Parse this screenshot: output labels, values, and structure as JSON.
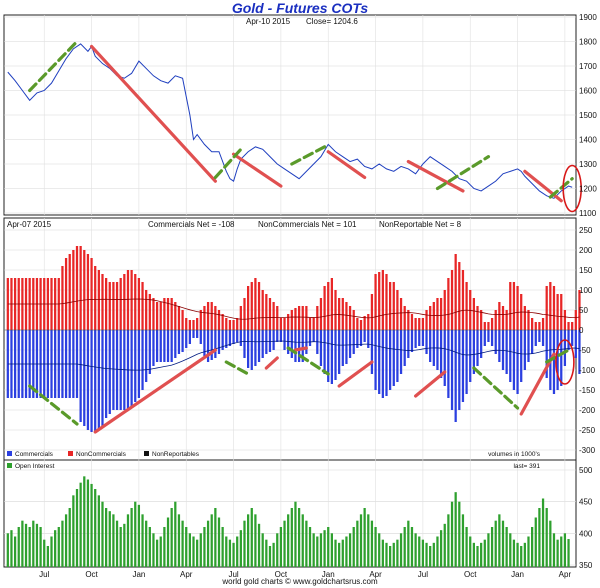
{
  "title": "Gold - Futures COTs",
  "price_header": {
    "date": "Apr-10 2015",
    "close": "Close= 1204.6"
  },
  "cot_header": {
    "date": "Apr-07 2015",
    "commercials": "Commercials Net = -108",
    "noncommercials": "NonCommercials Net = 101",
    "nonreportable": "NonReportable Net = 8"
  },
  "legend": {
    "commercials": "Commercials",
    "noncommercials": "NonCommercials",
    "nonreportables": "NonReportables",
    "units": "volumes in 1000's"
  },
  "oi_header": {
    "label": "Open Interest",
    "last": "last= 391"
  },
  "footer": "world gold charts © www.goldchartsrus.com",
  "colors": {
    "price_line": "#1f3fbf",
    "commercials": "#2b3fe0",
    "noncommercials": "#e82626",
    "open_interest": "#2ea02e",
    "trend_red": "#e05050",
    "trend_green": "#5a9a2a",
    "title": "#1a2fc0"
  },
  "chart_data": [
    {
      "type": "line",
      "title": "Gold - Futures COTs",
      "ylim": [
        1100,
        1900
      ],
      "yticks": [
        1100,
        1200,
        1300,
        1400,
        1500,
        1600,
        1700,
        1800,
        1900
      ],
      "x_tick_labels": [
        "Jul",
        "Oct",
        "Jan",
        "Apr",
        "Jul",
        "Oct",
        "Jan",
        "Apr",
        "Jul",
        "Oct",
        "Jan",
        "Apr"
      ],
      "x_tick_weeks": [
        10,
        23,
        36,
        49,
        62,
        75,
        88,
        101,
        114,
        127,
        140,
        153
      ],
      "series": [
        {
          "x_weeks": [
            0,
            2,
            4,
            6,
            8,
            10,
            12,
            14,
            16,
            18,
            20,
            22,
            23,
            24,
            26,
            28,
            30,
            32,
            34,
            36,
            38,
            40,
            42,
            44,
            46,
            48,
            50,
            51,
            52,
            54,
            56,
            58,
            60,
            61,
            62,
            63,
            64,
            66,
            68,
            70,
            72,
            74,
            76,
            78,
            80,
            82,
            84,
            86,
            88,
            90,
            92,
            94,
            96,
            98,
            100,
            102,
            104,
            106,
            108,
            110,
            112,
            114,
            116,
            118,
            120,
            122,
            124,
            126,
            128,
            130,
            132,
            134,
            136,
            138,
            140,
            141,
            142,
            144,
            146,
            148,
            150,
            152,
            154,
            155
          ],
          "values": [
            1675,
            1640,
            1600,
            1560,
            1590,
            1600,
            1630,
            1680,
            1730,
            1770,
            1790,
            1760,
            1780,
            1740,
            1710,
            1690,
            1660,
            1650,
            1670,
            1720,
            1690,
            1660,
            1640,
            1630,
            1660,
            1650,
            1500,
            1400,
            1420,
            1380,
            1350,
            1350,
            1270,
            1240,
            1230,
            1280,
            1320,
            1350,
            1370,
            1360,
            1330,
            1300,
            1280,
            1260,
            1240,
            1270,
            1300,
            1330,
            1380,
            1350,
            1330,
            1310,
            1320,
            1290,
            1280,
            1300,
            1280,
            1270,
            1290,
            1280,
            1260,
            1300,
            1330,
            1310,
            1290,
            1270,
            1240,
            1230,
            1200,
            1190,
            1210,
            1230,
            1260,
            1270,
            1280,
            1270,
            1250,
            1220,
            1190,
            1170,
            1160,
            1190,
            1210,
            1205
          ]
        }
      ],
      "annotations": {
        "red_trendlines": [
          [
            23,
            1780,
            57,
            1230
          ],
          [
            62,
            1340,
            75,
            1210
          ],
          [
            88,
            1350,
            98,
            1245
          ],
          [
            110,
            1310,
            125,
            1190
          ],
          [
            142,
            1270,
            152,
            1150
          ]
        ],
        "green_trendlines": [
          [
            6,
            1600,
            19,
            1800
          ],
          [
            57,
            1245,
            64,
            1360
          ],
          [
            78,
            1300,
            87,
            1370
          ],
          [
            118,
            1200,
            132,
            1330
          ],
          [
            149,
            1165,
            155,
            1240
          ]
        ],
        "circle": [
          155,
          1200
        ]
      }
    },
    {
      "type": "bar",
      "title": "",
      "ylim": [
        -300,
        250
      ],
      "yticks": [
        -300,
        -250,
        -200,
        -150,
        -100,
        -50,
        0,
        50,
        100,
        150,
        200,
        250
      ],
      "units": "volumes in 1000's",
      "series": [
        {
          "name": "NonCommercials",
          "values": [
            130,
            130,
            130,
            130,
            130,
            130,
            130,
            130,
            130,
            130,
            130,
            130,
            130,
            130,
            130,
            160,
            180,
            190,
            200,
            210,
            210,
            200,
            190,
            180,
            160,
            150,
            140,
            130,
            120,
            120,
            120,
            130,
            140,
            150,
            150,
            140,
            130,
            120,
            100,
            90,
            80,
            70,
            70,
            80,
            80,
            80,
            70,
            60,
            50,
            30,
            25,
            25,
            30,
            50,
            60,
            70,
            70,
            60,
            50,
            40,
            30,
            25,
            25,
            30,
            60,
            80,
            110,
            120,
            130,
            120,
            100,
            90,
            80,
            70,
            60,
            30,
            30,
            40,
            50,
            55,
            60,
            60,
            60,
            30,
            30,
            60,
            80,
            110,
            120,
            130,
            100,
            80,
            80,
            70,
            60,
            50,
            30,
            25,
            35,
            40,
            90,
            140,
            145,
            150,
            140,
            120,
            120,
            100,
            80,
            60,
            50,
            40,
            30,
            30,
            30,
            50,
            60,
            70,
            80,
            80,
            100,
            130,
            150,
            190,
            170,
            150,
            120,
            100,
            80,
            60,
            50,
            20,
            20,
            30,
            50,
            70,
            60,
            50,
            120,
            120,
            110,
            90,
            60,
            50,
            30,
            20,
            20,
            30,
            110,
            120,
            110,
            90,
            90,
            50,
            20,
            20,
            50,
            100
          ]
        },
        {
          "name": "Commercials",
          "values": [
            -170,
            -170,
            -170,
            -170,
            -170,
            -170,
            -170,
            -170,
            -170,
            -170,
            -170,
            -170,
            -170,
            -170,
            -170,
            -170,
            -170,
            -170,
            -170,
            -170,
            -230,
            -240,
            -250,
            -255,
            -255,
            -250,
            -240,
            -220,
            -210,
            -200,
            -200,
            -200,
            -200,
            -200,
            -190,
            -180,
            -170,
            -150,
            -130,
            -110,
            -90,
            -80,
            -80,
            -80,
            -80,
            -80,
            -70,
            -60,
            -55,
            -45,
            -35,
            -20,
            -20,
            -35,
            -65,
            -80,
            -75,
            -70,
            -60,
            -50,
            -45,
            -40,
            -35,
            -30,
            -40,
            -70,
            -95,
            -100,
            -90,
            -80,
            -70,
            -60,
            -55,
            -50,
            -30,
            -30,
            -50,
            -60,
            -70,
            -80,
            -80,
            -80,
            -60,
            -40,
            -30,
            -60,
            -90,
            -110,
            -130,
            -135,
            -125,
            -110,
            -90,
            -85,
            -70,
            -60,
            -45,
            -40,
            -30,
            -45,
            -110,
            -150,
            -160,
            -170,
            -165,
            -150,
            -140,
            -130,
            -110,
            -90,
            -70,
            -55,
            -45,
            -40,
            -40,
            -60,
            -80,
            -90,
            -100,
            -120,
            -140,
            -170,
            -200,
            -230,
            -200,
            -180,
            -160,
            -130,
            -110,
            -90,
            -70,
            -40,
            -30,
            -40,
            -60,
            -80,
            -100,
            -110,
            -130,
            -150,
            -160,
            -130,
            -100,
            -80,
            -60,
            -40,
            -30,
            -40,
            -120,
            -150,
            -160,
            -150,
            -140,
            -90,
            -50,
            -40,
            -70,
            -110
          ]
        },
        {
          "name": "NonReportables",
          "values": []
        }
      ],
      "annotations": {
        "red_trendlines": [
          [
            24,
            -255,
            57,
            -50
          ],
          [
            71,
            -95,
            74,
            -70
          ],
          [
            79,
            -50,
            82,
            -45
          ],
          [
            91,
            -140,
            100,
            -80
          ],
          [
            112,
            -165,
            120,
            -105
          ],
          [
            141,
            -210,
            150,
            -60
          ]
        ],
        "green_trendlines": [
          [
            6,
            -140,
            19,
            -235
          ],
          [
            60,
            -80,
            66,
            -110
          ],
          [
            77,
            -45,
            88,
            -110
          ],
          [
            128,
            -95,
            140,
            -195
          ],
          [
            148,
            -80,
            154,
            -50
          ]
        ],
        "circle": [
          153,
          -80
        ]
      }
    },
    {
      "type": "bar",
      "title": "",
      "ylim": [
        350,
        500
      ],
      "yticks": [
        350,
        400,
        450,
        500
      ],
      "series": [
        {
          "name": "Open Interest",
          "values": [
            400,
            405,
            395,
            410,
            420,
            415,
            410,
            420,
            415,
            410,
            390,
            380,
            395,
            405,
            410,
            420,
            430,
            440,
            460,
            470,
            480,
            490,
            485,
            478,
            470,
            460,
            450,
            440,
            435,
            430,
            420,
            410,
            415,
            430,
            440,
            450,
            445,
            430,
            420,
            410,
            400,
            390,
            395,
            410,
            425,
            440,
            450,
            430,
            420,
            410,
            400,
            395,
            390,
            400,
            410,
            420,
            430,
            440,
            425,
            410,
            395,
            390,
            385,
            395,
            405,
            420,
            430,
            440,
            430,
            415,
            400,
            390,
            380,
            385,
            400,
            410,
            420,
            430,
            440,
            450,
            440,
            430,
            420,
            410,
            400,
            395,
            400,
            405,
            410,
            400,
            390,
            385,
            390,
            395,
            400,
            410,
            420,
            430,
            440,
            430,
            420,
            410,
            400,
            390,
            385,
            380,
            385,
            390,
            400,
            410,
            420,
            410,
            400,
            395,
            390,
            385,
            380,
            385,
            395,
            405,
            415,
            430,
            450,
            465,
            450,
            430,
            410,
            395,
            385,
            380,
            385,
            390,
            400,
            410,
            420,
            430,
            420,
            410,
            400,
            390,
            385,
            380,
            385,
            395,
            410,
            425,
            440,
            455,
            440,
            420,
            400,
            390,
            395,
            400,
            391
          ]
        }
      ]
    }
  ]
}
